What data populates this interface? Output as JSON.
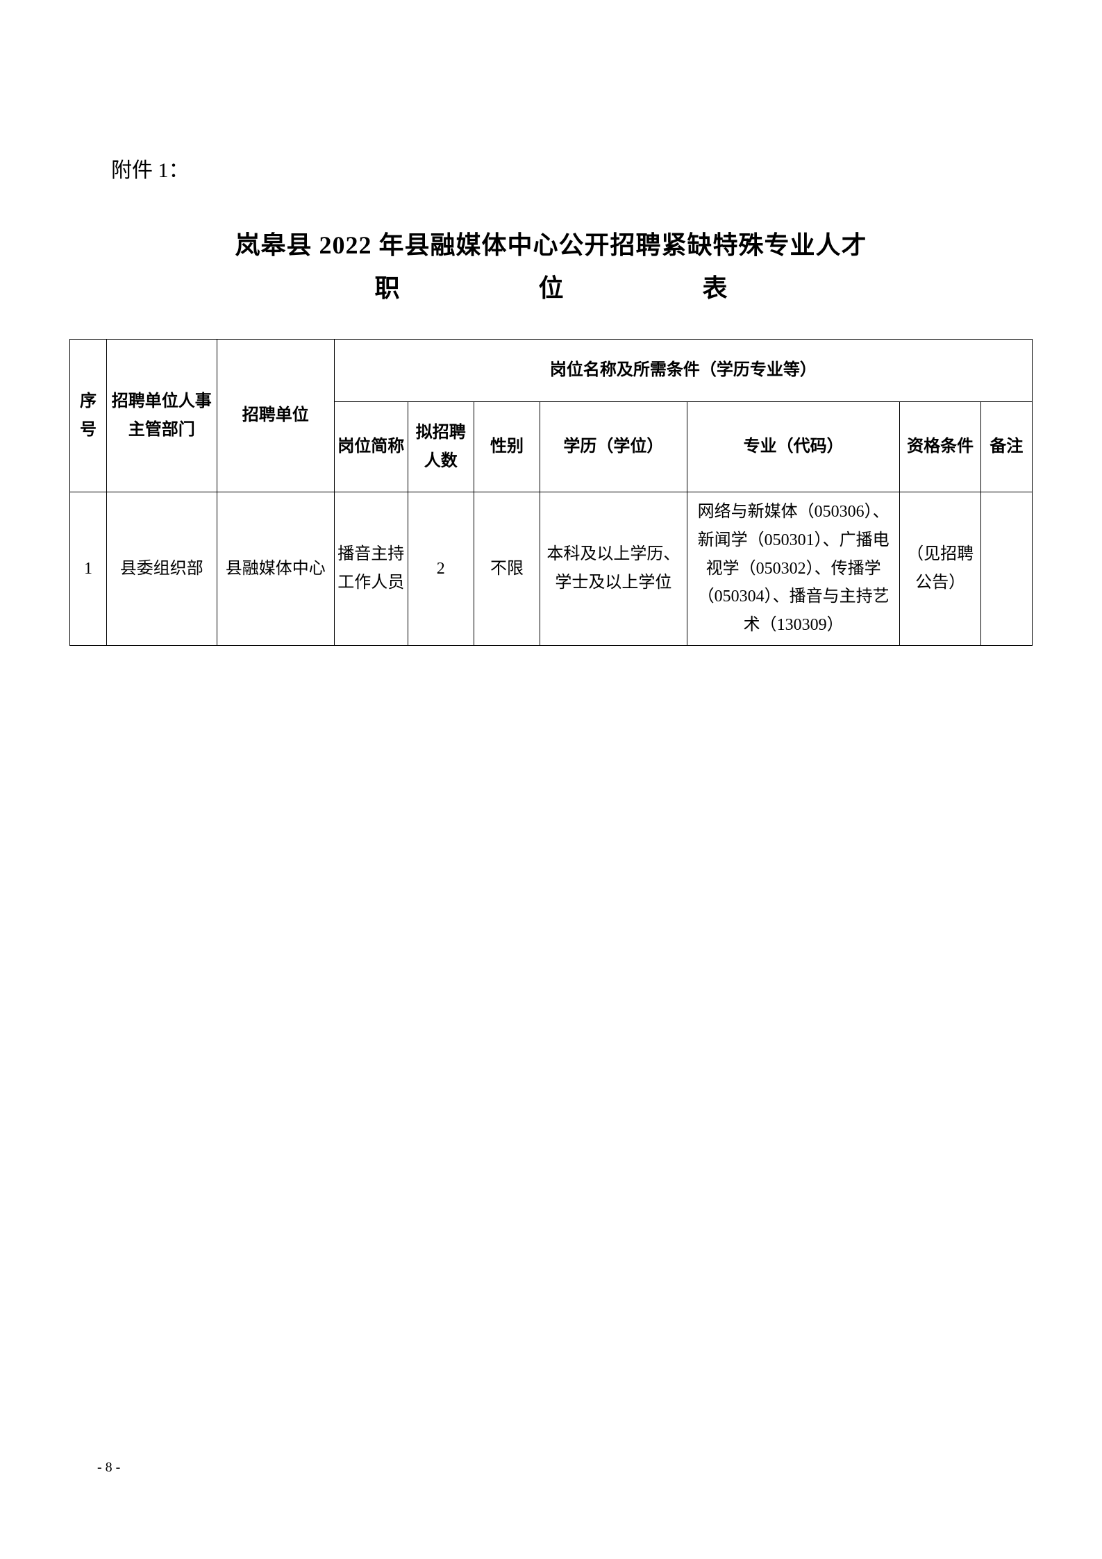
{
  "attachment_label": "附件 1：",
  "title": {
    "line1": "岚皋县 2022 年县融媒体中心公开招聘紧缺特殊专业人才",
    "line2_chars": [
      "职",
      "位",
      "表"
    ]
  },
  "table": {
    "header_group": "岗位名称及所需条件（学历专业等）",
    "columns": {
      "seq": "序号",
      "dept": "招聘单位人事主管部门",
      "unit": "招聘单位",
      "jobname": "岗位简称",
      "count": "拟招聘人数",
      "gender": "性别",
      "edu": "学历（学位）",
      "major": "专业（代码）",
      "qual": "资格条件",
      "remark": "备注"
    },
    "rows": [
      {
        "seq": "1",
        "dept": "县委组织部",
        "unit": "县融媒体中心",
        "jobname": "播音主持工作人员",
        "count": "2",
        "gender": "不限",
        "edu": "本科及以上学历、学士及以上学位",
        "major": "网络与新媒体（050306）、新闻学（050301）、广播电视学（050302）、传播学（050304）、播音与主持艺术（130309）",
        "qual": "（见招聘公告）",
        "remark": ""
      }
    ]
  },
  "page_number": "- 8 -",
  "styling": {
    "body_width": 1587,
    "body_height": 2245,
    "background_color": "#ffffff",
    "text_color": "#000000",
    "border_color": "#000000",
    "attachment_fontsize": 30,
    "title_fontsize": 36,
    "cell_fontsize": 24,
    "page_number_fontsize": 20,
    "font_family": "SimSun"
  }
}
